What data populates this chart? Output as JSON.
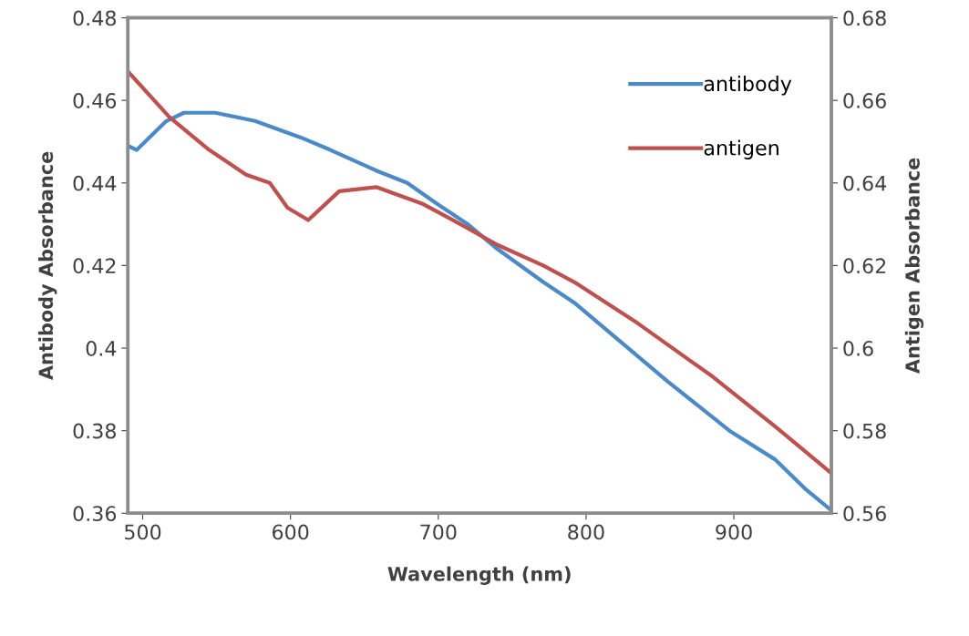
{
  "chart_data": {
    "type": "line",
    "xlabel": "Wavelength (nm)",
    "ylabel": "Antibody Absorbance",
    "y2label": "Antigen Absorbance",
    "xlim": [
      490,
      966
    ],
    "xticks": [
      500,
      600,
      700,
      800,
      900
    ],
    "ylim": [
      0.36,
      0.48
    ],
    "yticks": [
      0.36,
      0.38,
      0.4,
      0.42,
      0.44,
      0.46,
      0.48
    ],
    "y2lim": [
      0.56,
      0.68
    ],
    "y2ticks": [
      0.56,
      0.58,
      0.6,
      0.62,
      0.64,
      0.66,
      0.68
    ],
    "grid": false,
    "legend": "top right",
    "marker": "none",
    "line_style": "solid",
    "series": [
      {
        "name": "antibody",
        "color": "#4a8ac8",
        "x": [
          490,
          496,
          516,
          528,
          549,
          576,
          607,
          627,
          658,
          679,
          699,
          720,
          740,
          771,
          792,
          855,
          897,
          928,
          948,
          965
        ],
        "values": [
          0.449,
          0.448,
          0.455,
          0.457,
          0.457,
          0.455,
          0.451,
          0.448,
          0.443,
          0.44,
          0.435,
          0.43,
          0.424,
          0.416,
          0.411,
          0.392,
          0.38,
          0.373,
          0.366,
          0.361
        ]
      },
      {
        "name": "antigen",
        "color": "#c0504d",
        "axis": "y2",
        "x": [
          490,
          518,
          545,
          570,
          586,
          598,
          612,
          633,
          658,
          689,
          710,
          740,
          771,
          792,
          835,
          886,
          928,
          965
        ],
        "values": [
          0.667,
          0.656,
          0.648,
          0.642,
          0.64,
          0.634,
          0.631,
          0.638,
          0.639,
          0.635,
          0.631,
          0.625,
          0.62,
          0.616,
          0.606,
          0.593,
          0.581,
          0.57
        ]
      }
    ]
  }
}
